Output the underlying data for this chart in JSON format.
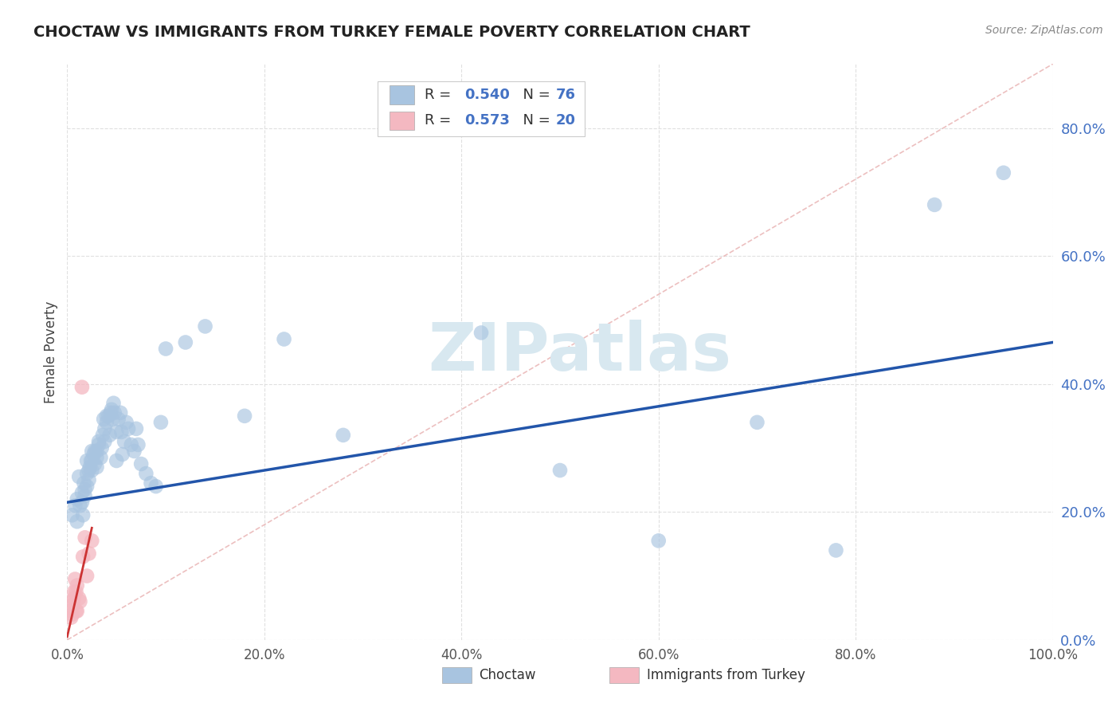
{
  "title": "CHOCTAW VS IMMIGRANTS FROM TURKEY FEMALE POVERTY CORRELATION CHART",
  "source": "Source: ZipAtlas.com",
  "ylabel": "Female Poverty",
  "choctaw_R": 0.54,
  "choctaw_N": 76,
  "turkey_R": 0.573,
  "turkey_N": 20,
  "choctaw_color": "#a8c4e0",
  "turkey_color": "#f4b8c1",
  "choctaw_line_color": "#2255aa",
  "turkey_line_color": "#cc3333",
  "ref_line_color": "#e8b0b0",
  "background_color": "#ffffff",
  "grid_color": "#e0e0e0",
  "xlim": [
    0.0,
    1.0
  ],
  "ylim": [
    0.0,
    0.9
  ],
  "yticks": [
    0.0,
    0.2,
    0.4,
    0.6,
    0.8
  ],
  "xticks": [
    0.0,
    0.2,
    0.4,
    0.6,
    0.8,
    1.0
  ],
  "legend_labels": [
    "Choctaw",
    "Immigrants from Turkey"
  ],
  "choctaw_x": [
    0.005,
    0.008,
    0.01,
    0.01,
    0.012,
    0.013,
    0.015,
    0.015,
    0.016,
    0.017,
    0.018,
    0.018,
    0.02,
    0.02,
    0.02,
    0.022,
    0.022,
    0.023,
    0.024,
    0.025,
    0.025,
    0.025,
    0.027,
    0.028,
    0.028,
    0.03,
    0.03,
    0.03,
    0.032,
    0.032,
    0.034,
    0.035,
    0.036,
    0.037,
    0.038,
    0.038,
    0.04,
    0.04,
    0.042,
    0.043,
    0.044,
    0.045,
    0.046,
    0.047,
    0.048,
    0.05,
    0.05,
    0.052,
    0.054,
    0.055,
    0.056,
    0.058,
    0.06,
    0.062,
    0.065,
    0.068,
    0.07,
    0.072,
    0.075,
    0.08,
    0.085,
    0.09,
    0.095,
    0.1,
    0.12,
    0.14,
    0.18,
    0.22,
    0.28,
    0.42,
    0.5,
    0.6,
    0.7,
    0.78,
    0.88,
    0.95
  ],
  "choctaw_y": [
    0.195,
    0.21,
    0.22,
    0.185,
    0.255,
    0.21,
    0.215,
    0.23,
    0.195,
    0.245,
    0.225,
    0.235,
    0.26,
    0.28,
    0.24,
    0.265,
    0.25,
    0.27,
    0.28,
    0.295,
    0.265,
    0.28,
    0.29,
    0.295,
    0.275,
    0.27,
    0.285,
    0.295,
    0.31,
    0.305,
    0.285,
    0.3,
    0.32,
    0.345,
    0.31,
    0.33,
    0.34,
    0.35,
    0.35,
    0.32,
    0.355,
    0.36,
    0.345,
    0.37,
    0.355,
    0.28,
    0.325,
    0.345,
    0.355,
    0.325,
    0.29,
    0.31,
    0.34,
    0.33,
    0.305,
    0.295,
    0.33,
    0.305,
    0.275,
    0.26,
    0.245,
    0.24,
    0.34,
    0.455,
    0.465,
    0.49,
    0.35,
    0.47,
    0.32,
    0.48,
    0.265,
    0.155,
    0.34,
    0.14,
    0.68,
    0.73
  ],
  "turkey_x": [
    0.003,
    0.004,
    0.005,
    0.005,
    0.006,
    0.007,
    0.007,
    0.008,
    0.009,
    0.009,
    0.01,
    0.01,
    0.012,
    0.013,
    0.015,
    0.016,
    0.018,
    0.02,
    0.022,
    0.025
  ],
  "turkey_y": [
    0.045,
    0.035,
    0.04,
    0.06,
    0.055,
    0.075,
    0.065,
    0.095,
    0.045,
    0.075,
    0.085,
    0.045,
    0.065,
    0.06,
    0.395,
    0.13,
    0.16,
    0.1,
    0.135,
    0.155
  ],
  "watermark_text": "ZIPatlas",
  "watermark_color": "#d8e8f0",
  "choctaw_line_x": [
    0.0,
    1.0
  ],
  "choctaw_line_y": [
    0.215,
    0.465
  ],
  "turkey_line_x": [
    0.0,
    0.025
  ],
  "turkey_line_y": [
    0.005,
    0.175
  ]
}
